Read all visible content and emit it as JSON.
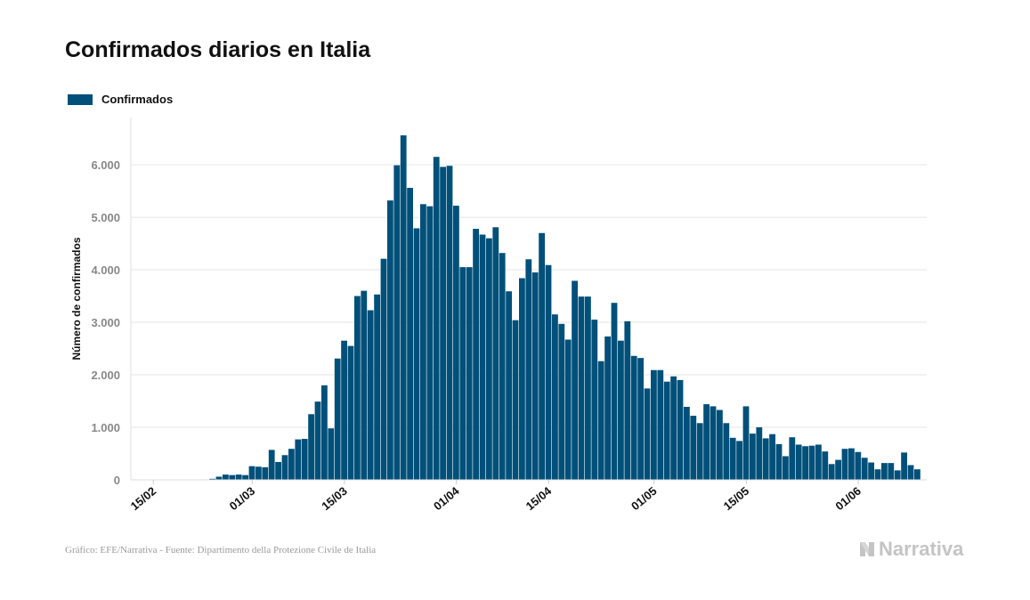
{
  "title": "Confirmados diarios en Italia",
  "source": "Gráfico: EFE/Narrativa - Fuente: Dipartimento della Protezione Civile de Italia",
  "brand": {
    "name": "Narrativa",
    "icon": "narrativa-logo-icon"
  },
  "colors": {
    "bar": "#00507a",
    "grid": "#e6e6e6",
    "tick_text": "#888888",
    "text": "#111111"
  },
  "chart_data": {
    "type": "bar",
    "ylabel": "Número de confirmados",
    "ylim": [
      0,
      6900
    ],
    "yticks": [
      0,
      1000,
      2000,
      3000,
      4000,
      5000,
      6000
    ],
    "ytick_labels": [
      "0",
      "1.000",
      "2.000",
      "3.000",
      "4.000",
      "5.000",
      "6.000"
    ],
    "xticks": [
      {
        "date": "2020-02-15",
        "label": "15/02"
      },
      {
        "date": "2020-03-01",
        "label": "01/03"
      },
      {
        "date": "2020-03-15",
        "label": "15/03"
      },
      {
        "date": "2020-04-01",
        "label": "01/04"
      },
      {
        "date": "2020-04-15",
        "label": "15/04"
      },
      {
        "date": "2020-05-01",
        "label": "01/05"
      },
      {
        "date": "2020-05-15",
        "label": "15/05"
      },
      {
        "date": "2020-06-01",
        "label": "01/06"
      }
    ],
    "grid": true,
    "legend": "top-left",
    "series": [
      {
        "name": "Confirmados",
        "start_date": "2020-02-16",
        "values": [
          0,
          0,
          0,
          0,
          0,
          3,
          0,
          0,
          20,
          60,
          100,
          90,
          100,
          90,
          260,
          250,
          240,
          570,
          340,
          470,
          590,
          770,
          780,
          1250,
          1490,
          1800,
          980,
          2310,
          2650,
          2550,
          3500,
          3600,
          3230,
          3530,
          4210,
          5320,
          5990,
          6560,
          5560,
          4790,
          5250,
          5210,
          6150,
          5960,
          5980,
          5220,
          4050,
          4050,
          4780,
          4670,
          4600,
          4810,
          4320,
          3590,
          3040,
          3840,
          4200,
          3950,
          4700,
          4090,
          3150,
          2970,
          2670,
          3790,
          3490,
          3490,
          3050,
          2260,
          2730,
          3370,
          2650,
          3020,
          2360,
          2320,
          1740,
          2090,
          2090,
          1870,
          1970,
          1900,
          1390,
          1220,
          1080,
          1440,
          1400,
          1330,
          1080,
          800,
          740,
          1400,
          880,
          1000,
          790,
          870,
          680,
          450,
          810,
          670,
          640,
          650,
          670,
          540,
          300,
          380,
          590,
          600,
          530,
          420,
          330,
          200,
          320,
          320,
          180,
          520,
          280,
          200
        ]
      }
    ]
  }
}
